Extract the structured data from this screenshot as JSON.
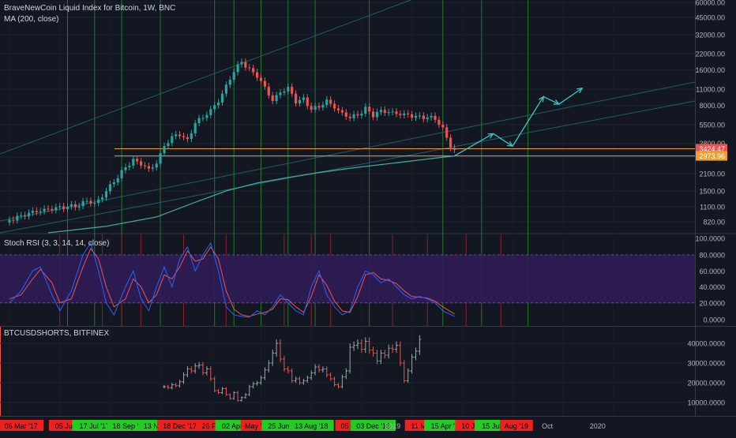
{
  "chart_data": [
    {
      "type": "candlestick",
      "title": "BraveNewCoin Liquid Index for Bitcoin, 1W, BNC",
      "indicator": "MA (200, close)",
      "scale": "log",
      "y_ticks": [
        820,
        1100,
        1500,
        2100,
        2900,
        3800,
        5500,
        8000,
        11000,
        16000,
        22000,
        32000,
        45000,
        60000
      ],
      "y_tick_labels": [
        "820.00",
        "1100.00",
        "1500.00",
        "2100.00",
        "2900.00",
        "3800.00",
        "5500.00",
        "8000.00",
        "11000.00",
        "16000.00",
        "22000.00",
        "32000.00",
        "45000.00",
        "60000.00"
      ],
      "ylim": [
        660,
        63000
      ],
      "price_labels": [
        {
          "value": 3424.47,
          "text": "3424.47",
          "color": "#ef5350"
        },
        {
          "value": 2973.96,
          "text": "2973.96",
          "color": "#f0a030"
        }
      ],
      "horizontal_lines": [
        {
          "value": 3424.47,
          "color": "#f0a030"
        },
        {
          "value": 2973.96,
          "color": "#f0a030"
        }
      ],
      "close_path": [
        [
          0,
          850
        ],
        [
          3,
          900
        ],
        [
          6,
          960
        ],
        [
          9,
          1000
        ],
        [
          12,
          1050
        ],
        [
          15,
          1100
        ],
        [
          18,
          1150
        ],
        [
          20,
          1280
        ],
        [
          22,
          1200
        ],
        [
          24,
          1400
        ],
        [
          26,
          1700
        ],
        [
          28,
          2000
        ],
        [
          30,
          2400
        ],
        [
          32,
          2700
        ],
        [
          34,
          2500
        ],
        [
          36,
          2200
        ],
        [
          38,
          2500
        ],
        [
          40,
          3500
        ],
        [
          42,
          4200
        ],
        [
          44,
          4500
        ],
        [
          46,
          4000
        ],
        [
          48,
          5800
        ],
        [
          50,
          6500
        ],
        [
          52,
          7500
        ],
        [
          54,
          9000
        ],
        [
          56,
          12000
        ],
        [
          58,
          16000
        ],
        [
          60,
          19000
        ],
        [
          62,
          16000
        ],
        [
          64,
          14000
        ],
        [
          66,
          11000
        ],
        [
          68,
          8500
        ],
        [
          70,
          10000
        ],
        [
          72,
          11000
        ],
        [
          74,
          8500
        ],
        [
          76,
          9000
        ],
        [
          78,
          7500
        ],
        [
          80,
          8000
        ],
        [
          82,
          9000
        ],
        [
          84,
          8000
        ],
        [
          86,
          7000
        ],
        [
          88,
          6500
        ],
        [
          90,
          6700
        ],
        [
          92,
          7500
        ],
        [
          94,
          6500
        ],
        [
          96,
          7000
        ],
        [
          98,
          6800
        ],
        [
          100,
          6600
        ],
        [
          102,
          6500
        ],
        [
          104,
          6400
        ],
        [
          106,
          6300
        ],
        [
          108,
          6400
        ],
        [
          110,
          6300
        ],
        [
          112,
          5200
        ],
        [
          114,
          3700
        ],
        [
          115,
          3424
        ]
      ],
      "ma200": [
        [
          10,
          660
        ],
        [
          25,
          750
        ],
        [
          38,
          900
        ],
        [
          48,
          1200
        ],
        [
          56,
          1500
        ],
        [
          64,
          1750
        ],
        [
          72,
          1950
        ],
        [
          80,
          2150
        ],
        [
          90,
          2380
        ],
        [
          100,
          2600
        ],
        [
          110,
          2850
        ],
        [
          115,
          2974
        ]
      ],
      "projection_arrow": [
        [
          115,
          2974
        ],
        [
          125,
          4600
        ],
        [
          130,
          3600
        ],
        [
          138,
          9500
        ],
        [
          142,
          8200
        ],
        [
          148,
          11200
        ]
      ]
    },
    {
      "type": "stoch_rsi",
      "title": "Stoch RSI (3, 3, 14, 14, close)",
      "y_ticks": [
        0,
        20,
        40,
        60,
        80,
        100
      ],
      "y_tick_labels": [
        "0.0000",
        "20.0000",
        "40.0000",
        "60.0000",
        "80.0000",
        "100.0000"
      ],
      "band": [
        20,
        80
      ],
      "k": [
        [
          0,
          20
        ],
        [
          3,
          35
        ],
        [
          6,
          60
        ],
        [
          8,
          65
        ],
        [
          11,
          30
        ],
        [
          13,
          10
        ],
        [
          16,
          35
        ],
        [
          19,
          80
        ],
        [
          21,
          95
        ],
        [
          23,
          60
        ],
        [
          25,
          20
        ],
        [
          27,
          5
        ],
        [
          30,
          40
        ],
        [
          32,
          60
        ],
        [
          34,
          25
        ],
        [
          36,
          10
        ],
        [
          38,
          40
        ],
        [
          40,
          65
        ],
        [
          42,
          40
        ],
        [
          44,
          75
        ],
        [
          46,
          90
        ],
        [
          48,
          60
        ],
        [
          50,
          80
        ],
        [
          52,
          95
        ],
        [
          54,
          60
        ],
        [
          56,
          15
        ],
        [
          58,
          5
        ],
        [
          60,
          3
        ],
        [
          62,
          2
        ],
        [
          64,
          10
        ],
        [
          66,
          5
        ],
        [
          68,
          15
        ],
        [
          70,
          30
        ],
        [
          72,
          20
        ],
        [
          74,
          10
        ],
        [
          76,
          5
        ],
        [
          78,
          40
        ],
        [
          80,
          60
        ],
        [
          82,
          30
        ],
        [
          84,
          15
        ],
        [
          86,
          5
        ],
        [
          88,
          10
        ],
        [
          90,
          40
        ],
        [
          92,
          60
        ],
        [
          94,
          55
        ],
        [
          96,
          45
        ],
        [
          98,
          50
        ],
        [
          100,
          40
        ],
        [
          102,
          30
        ],
        [
          104,
          25
        ],
        [
          106,
          28
        ],
        [
          108,
          25
        ],
        [
          110,
          20
        ],
        [
          112,
          10
        ],
        [
          115,
          3
        ]
      ],
      "d": [
        [
          0,
          25
        ],
        [
          3,
          30
        ],
        [
          6,
          50
        ],
        [
          8,
          62
        ],
        [
          11,
          45
        ],
        [
          13,
          20
        ],
        [
          16,
          25
        ],
        [
          19,
          65
        ],
        [
          21,
          88
        ],
        [
          23,
          75
        ],
        [
          25,
          40
        ],
        [
          27,
          15
        ],
        [
          30,
          25
        ],
        [
          32,
          50
        ],
        [
          34,
          40
        ],
        [
          36,
          20
        ],
        [
          38,
          30
        ],
        [
          40,
          55
        ],
        [
          42,
          50
        ],
        [
          44,
          65
        ],
        [
          46,
          85
        ],
        [
          48,
          72
        ],
        [
          50,
          75
        ],
        [
          52,
          90
        ],
        [
          54,
          75
        ],
        [
          56,
          35
        ],
        [
          58,
          12
        ],
        [
          60,
          5
        ],
        [
          62,
          3
        ],
        [
          64,
          6
        ],
        [
          66,
          8
        ],
        [
          68,
          12
        ],
        [
          70,
          25
        ],
        [
          72,
          24
        ],
        [
          74,
          15
        ],
        [
          76,
          8
        ],
        [
          78,
          28
        ],
        [
          80,
          55
        ],
        [
          82,
          42
        ],
        [
          84,
          22
        ],
        [
          86,
          10
        ],
        [
          88,
          8
        ],
        [
          90,
          28
        ],
        [
          92,
          55
        ],
        [
          94,
          58
        ],
        [
          96,
          50
        ],
        [
          98,
          48
        ],
        [
          100,
          44
        ],
        [
          102,
          35
        ],
        [
          104,
          28
        ],
        [
          106,
          27
        ],
        [
          108,
          26
        ],
        [
          110,
          22
        ],
        [
          112,
          15
        ],
        [
          115,
          6
        ]
      ]
    },
    {
      "type": "bar",
      "title": "BTCUSDSHORTS, BITFINEX",
      "y_ticks": [
        10000,
        20000,
        30000,
        40000
      ],
      "y_tick_labels": [
        "10000.0000",
        "20000.0000",
        "30000.0000",
        "40000.0000"
      ],
      "ylim": [
        0,
        45000
      ],
      "range_start": 40,
      "values": [
        18000,
        17500,
        19000,
        18500,
        20500,
        24000,
        27000,
        26000,
        28500,
        29000,
        25000,
        27000,
        22000,
        16000,
        15000,
        17000,
        14000,
        12000,
        15000,
        11000,
        12500,
        14000,
        18000,
        19500,
        20000,
        22500,
        26500,
        30000,
        35000,
        40000,
        32000,
        27000,
        26000,
        21000,
        22000,
        20000,
        21000,
        22500,
        25000,
        28000,
        26500,
        27000,
        24000,
        22000,
        19000,
        18000,
        23000,
        26000,
        38000,
        39000,
        40000,
        37000,
        41000,
        36500,
        35000,
        31000,
        35000,
        34000,
        37500,
        37000,
        39000,
        30000,
        21000,
        26000,
        33000,
        36000,
        42000
      ]
    }
  ],
  "x_axis": {
    "labels": [
      {
        "text": "2017",
        "color": "",
        "x": 0.0
      },
      {
        "text": "06 Mar '17",
        "color": "#ef2020",
        "x": 3.0
      },
      {
        "text": "05 Jun '17",
        "color": "#ef2020",
        "x": 16.0
      },
      {
        "text": "17 Jul '17",
        "color": "#22cc22",
        "x": 22.0
      },
      {
        "text": "18 Sep '17",
        "color": "#22cc22",
        "x": 31.0
      },
      {
        "text": "13 Nov '17",
        "color": "#22cc22",
        "x": 39.0
      },
      {
        "text": "18 Dec '17",
        "color": "#ef2020",
        "x": 44.0
      },
      {
        "text": "26 Feb '18",
        "color": "#ef2020",
        "x": 54.0
      },
      {
        "text": "02 Apr '18",
        "color": "#22cc22",
        "x": 59.0
      },
      {
        "text": "May '18",
        "color": "#ef2020",
        "x": 64.0
      },
      {
        "text": "25 Jun '18",
        "color": "#22cc22",
        "x": 71.0
      },
      {
        "text": "13 Aug '18",
        "color": "#22cc22",
        "x": 78.0
      },
      {
        "text": "Oct",
        "color": "",
        "x": 86.0
      },
      {
        "text": "05 Nov '18",
        "color": "#ef2020",
        "x": 90.0
      },
      {
        "text": "03 Dec '18",
        "color": "#22cc22",
        "x": 94.0
      },
      {
        "text": "2019",
        "color": "",
        "x": 99.0
      },
      {
        "text": "11 Mar '19",
        "color": "#ef2020",
        "x": 108.0
      },
      {
        "text": "15 Apr '19",
        "color": "#22cc22",
        "x": 113.0
      },
      {
        "text": "10 Jun '19",
        "color": "#ef2020",
        "x": 121.0
      },
      {
        "text": "15 Jul '19",
        "color": "#22cc22",
        "x": 126.0
      },
      {
        "text": "Aug '19",
        "color": "#ef2020",
        "x": 131.0
      },
      {
        "text": "Oct",
        "color": "",
        "x": 139.0
      },
      {
        "text": "2020",
        "color": "",
        "x": 152.0
      }
    ],
    "vlines_green": [
      15,
      22,
      29,
      39,
      53,
      58,
      65,
      72,
      79,
      93,
      112,
      122,
      134
    ],
    "vlines_red": [
      13,
      24,
      29,
      34,
      45,
      56,
      71,
      78,
      83,
      99,
      108,
      118,
      127
    ]
  },
  "colors": {
    "up": "#26a69a",
    "down": "#ef5350",
    "ma": "#3fa7a0",
    "k_line": "#2962ff",
    "d_line": "#ef5350",
    "band": "#2f1c55",
    "arrow": "#37c9c0",
    "channel": "#1e5f6a",
    "orange": "#f0a030"
  }
}
